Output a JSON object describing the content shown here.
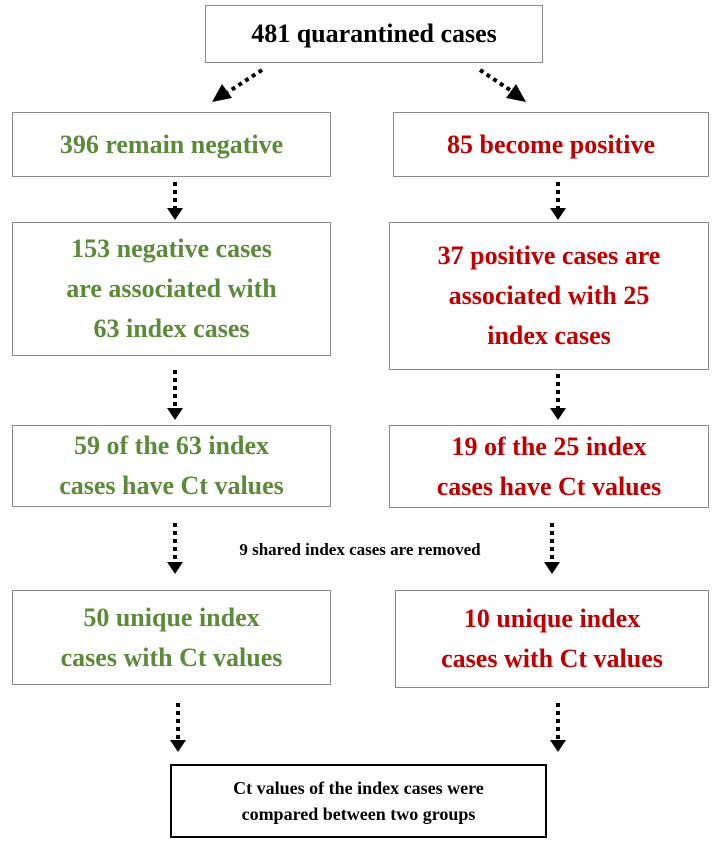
{
  "nodes": [
    {
      "lines": [
        "481 quarantined cases"
      ]
    },
    {
      "lines": [
        "396 remain negative"
      ]
    },
    {
      "lines": [
        "85 become positive"
      ]
    },
    {
      "lines": [
        "153 negative cases",
        "are associated with",
        "63 index cases"
      ]
    },
    {
      "lines": [
        "37 positive cases are",
        "associated with 25",
        "index cases"
      ]
    },
    {
      "lines": [
        "59 of the 63 index",
        "cases have Ct values"
      ]
    },
    {
      "lines": [
        "19 of the 25 index",
        "cases have Ct values"
      ]
    },
    {
      "lines": [
        "50 unique index",
        "cases with Ct values"
      ]
    },
    {
      "lines": [
        "10 unique index",
        "cases with Ct values"
      ]
    },
    {
      "lines": [
        "Ct values of the  index cases were",
        "compared between two groups"
      ]
    }
  ],
  "note": "9 shared index cases are removed"
}
